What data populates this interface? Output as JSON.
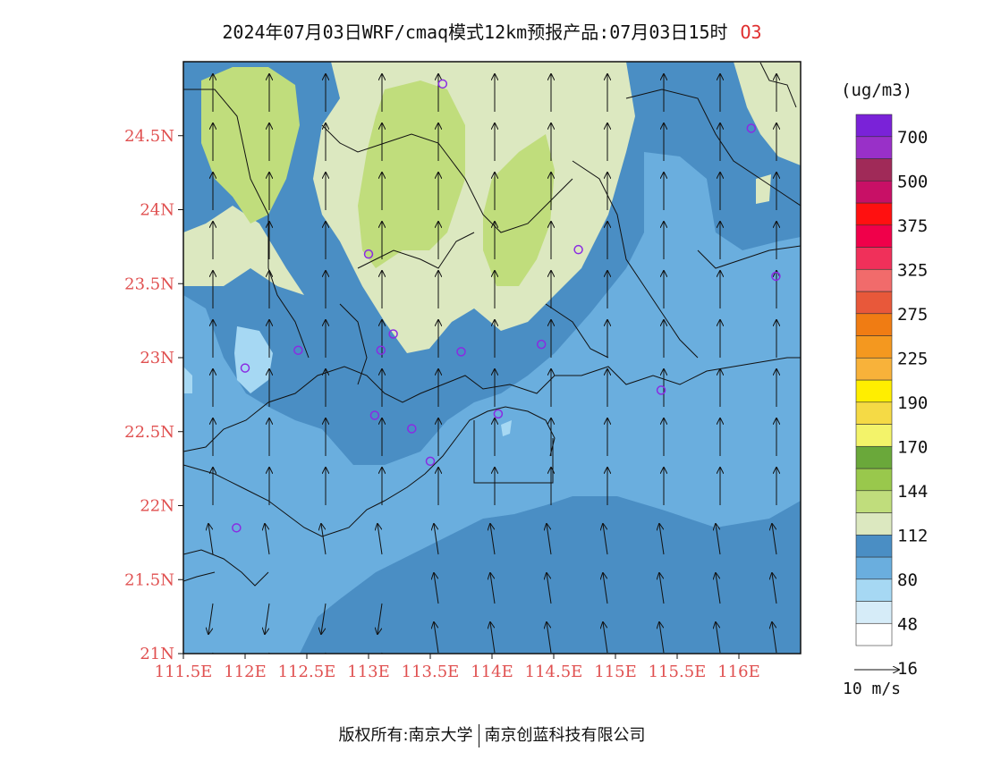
{
  "title": "2024年07月03日WRF/cmaq模式12km预报产品:07月03日15时",
  "species": "O3",
  "unit_label": "(ug/m3)",
  "wind_ref_label": "10 m/s",
  "copyright": {
    "left": "版权所有:南京大学",
    "right": "南京创蓝科技有限公司"
  },
  "axes": {
    "lat_labels": [
      "24.5N",
      "24N",
      "23.5N",
      "23N",
      "22.5N",
      "22N",
      "21.5N",
      "21N"
    ],
    "lat_values": [
      24.5,
      24,
      23.5,
      23,
      22.5,
      22,
      21.5,
      21
    ],
    "lon_labels": [
      "111.5E",
      "112E",
      "112.5E",
      "113E",
      "113.5E",
      "114E",
      "114.5E",
      "115E",
      "115.5E",
      "116E"
    ],
    "lon_values": [
      111.5,
      112,
      112.5,
      113,
      113.5,
      114,
      114.5,
      115,
      115.5,
      116
    ],
    "lon_range": [
      111.5,
      116.5
    ],
    "lat_range": [
      21,
      25
    ],
    "tick_color": "#e05050"
  },
  "legend": {
    "labels": [
      "700",
      "500",
      "375",
      "325",
      "275",
      "225",
      "190",
      "170",
      "144",
      "112",
      "80",
      "48",
      "16"
    ],
    "colors": [
      "#ffffff",
      "#d6ecf8",
      "#a6d8f3",
      "#6aaede",
      "#4a8ec4",
      "#dce8c0",
      "#c0dd7c",
      "#99c84c",
      "#6aa83a",
      "#f3f36a",
      "#f5da45",
      "#ffee00",
      "#f8b23a",
      "#f4981f",
      "#f07c13",
      "#e8583a",
      "#f16b6b",
      "#f0305a",
      "#f0004a",
      "#ff1010",
      "#c81066",
      "#a02a58",
      "#9930c8",
      "#7a22d8"
    ]
  },
  "monitoring_stations": [
    {
      "lon": 113.6,
      "lat": 24.85
    },
    {
      "lon": 116.1,
      "lat": 24.55
    },
    {
      "lon": 113.0,
      "lat": 23.7
    },
    {
      "lon": 114.7,
      "lat": 23.73
    },
    {
      "lon": 116.3,
      "lat": 23.55
    },
    {
      "lon": 113.2,
      "lat": 23.16
    },
    {
      "lon": 112.43,
      "lat": 23.05
    },
    {
      "lon": 113.1,
      "lat": 23.05
    },
    {
      "lon": 113.75,
      "lat": 23.04
    },
    {
      "lon": 114.4,
      "lat": 23.09
    },
    {
      "lon": 112.0,
      "lat": 22.93
    },
    {
      "lon": 115.37,
      "lat": 22.78
    },
    {
      "lon": 113.05,
      "lat": 22.61
    },
    {
      "lon": 114.05,
      "lat": 22.62
    },
    {
      "lon": 113.35,
      "lat": 22.52
    },
    {
      "lon": 113.5,
      "lat": 22.3
    },
    {
      "lon": 111.93,
      "lat": 21.85
    }
  ],
  "colors": {
    "station": "#8a2be2",
    "title": "#111111",
    "species": "#e03030",
    "frame": "#111111"
  }
}
